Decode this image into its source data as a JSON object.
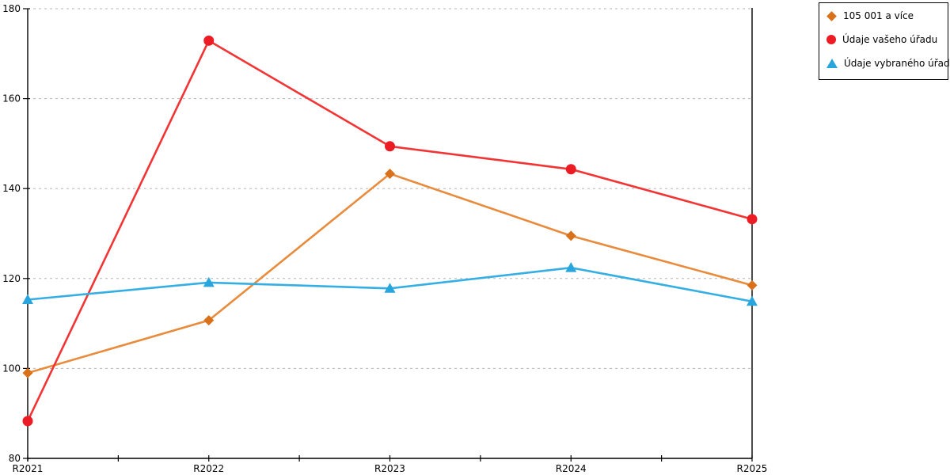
{
  "chart_data": {
    "type": "line",
    "categories": [
      "R2021",
      "R2022",
      "R2023",
      "R2024",
      "R2025"
    ],
    "series": [
      {
        "name": "105 001 a více",
        "marker": "diamond",
        "color": "#D9701A",
        "line_color": "#E98B3C",
        "values": [
          99.0,
          110.7,
          143.3,
          129.5,
          118.5
        ]
      },
      {
        "name": "Údaje vašeho úřadu",
        "marker": "circle",
        "color": "#EC1C24",
        "line_color": "#F23434",
        "values": [
          88.3,
          172.9,
          149.4,
          144.3,
          133.2
        ]
      },
      {
        "name": "Údaje vybraného úřadu",
        "marker": "triangle",
        "color": "#29A5DE",
        "line_color": "#35AFE3",
        "values": [
          115.3,
          119.1,
          117.8,
          122.4,
          114.9
        ]
      }
    ],
    "title": "",
    "xlabel": "",
    "ylabel": "",
    "ylim": [
      80,
      180
    ],
    "y_ticks": [
      80,
      100,
      120,
      140,
      160,
      180
    ],
    "grid": "horizontal-dashed",
    "grid_color": "#B5B5B5",
    "axis_color": "#000000",
    "background": "#FFFFFF",
    "legend_position": "top-right"
  }
}
